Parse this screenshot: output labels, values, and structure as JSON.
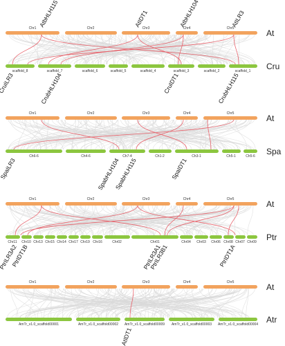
{
  "panels": [
    {
      "top_species": "At",
      "bottom_species": "Cru",
      "top_chrs": [
        "Chr1",
        "Chr2",
        "Chr3",
        "Chr4",
        "Chr5"
      ],
      "bottom_chrs": [
        "scaffold_8",
        "scaffold_7",
        "scaffold_6",
        "scaffold_5",
        "scaffold_4",
        "scaffold_3",
        "scaffold_2",
        "scaffold_1"
      ],
      "top_genes": [
        "AtbHLH115",
        "AtIDT1",
        "AtbHLH104",
        "AtILR3"
      ],
      "bottom_genes": [
        "CruILR3",
        "CrubHLH104",
        "CruIDT1",
        "CrubHLH115"
      ]
    },
    {
      "top_species": "At",
      "bottom_species": "Spa",
      "top_chrs": [
        "Chr1",
        "Chr2",
        "Chr3",
        "Chr4",
        "Chr5"
      ],
      "bottom_chrs": [
        "Ch6-6",
        "Ch4-6",
        "Ch7-4",
        "Ch1-2",
        "Ch3-1",
        "Ch5-1",
        "Ch5-6"
      ],
      "top_genes": [],
      "bottom_genes": [
        "SpaILR3",
        "SpabHLH104",
        "SpabHLH115",
        "SpaIDT1"
      ]
    },
    {
      "top_species": "At",
      "bottom_species": "Ptr",
      "top_chrs": [
        "Chr1",
        "Chr2",
        "Chr3",
        "Chr4",
        "Chr5"
      ],
      "bottom_chrs": [
        "Chr11",
        "Chr10",
        "Chr13",
        "Chr15",
        "Chr14",
        "Chr17",
        "Chr19",
        "Chr16",
        "Chr02",
        "Chr01",
        "Chr04",
        "Chr03",
        "Chr06",
        "Chr08",
        "Chr07",
        "Chr09"
      ],
      "top_genes": [],
      "bottom_genes": [
        "PtrILR3A2",
        "PtrIDT1B",
        "PtrILR3A1",
        "PtrILR3B1",
        "PtrIDT1A"
      ]
    },
    {
      "top_species": "At",
      "bottom_species": "Atr",
      "top_chrs": [
        "Chr1",
        "Chr2",
        "Chr3",
        "Chr4",
        "Chr5"
      ],
      "bottom_chrs": [
        "AmTr_v1.0_scaffold00001",
        "AmTr_v1.0_scaffold00002",
        "AmTr_v1.0_scaffold00009",
        "AmTr_v1.0_scaffold00003",
        "AmTr_v1.0_scaffold00004"
      ],
      "top_genes": [],
      "bottom_genes": [
        "AtIDT1"
      ]
    }
  ],
  "colors": {
    "top_chromosome": "#f2a35e",
    "bottom_chromosome": "#8cc63f",
    "background_links": "#d9d9d9",
    "highlight_links": "#e8626b"
  }
}
